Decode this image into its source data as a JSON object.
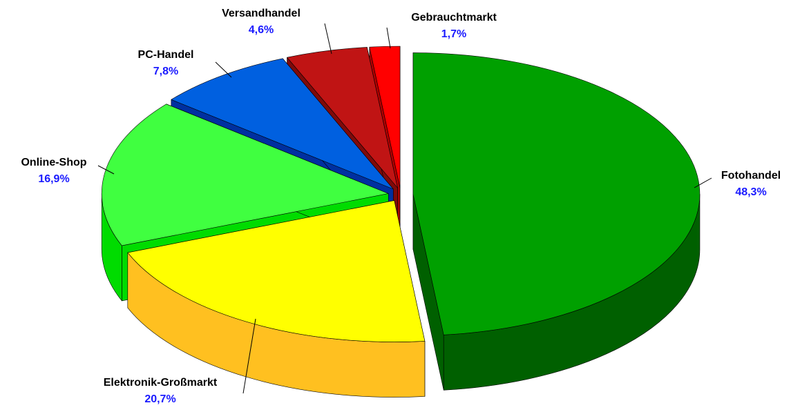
{
  "chart_data": {
    "type": "pie3d",
    "categories": [
      "Fotohandel",
      "Elektronik-Großmarkt",
      "Online-Shop",
      "PC-Handel",
      "Versandhandel",
      "Gebrauchtmarkt"
    ],
    "values": [
      48.3,
      20.7,
      16.9,
      7.8,
      4.6,
      1.7
    ],
    "value_labels": [
      "48,3%",
      "20,7%",
      "16,9%",
      "7,8%",
      "4,6%",
      "1,7%"
    ],
    "colors": [
      "#00a000",
      "#ffff00",
      "#40ff40",
      "#0060e0",
      "#c01414",
      "#ff0000"
    ],
    "side_colors": [
      "#006000",
      "#ffc020",
      "#00dc00",
      "#0030a0",
      "#800a0a",
      "#b00000"
    ]
  }
}
